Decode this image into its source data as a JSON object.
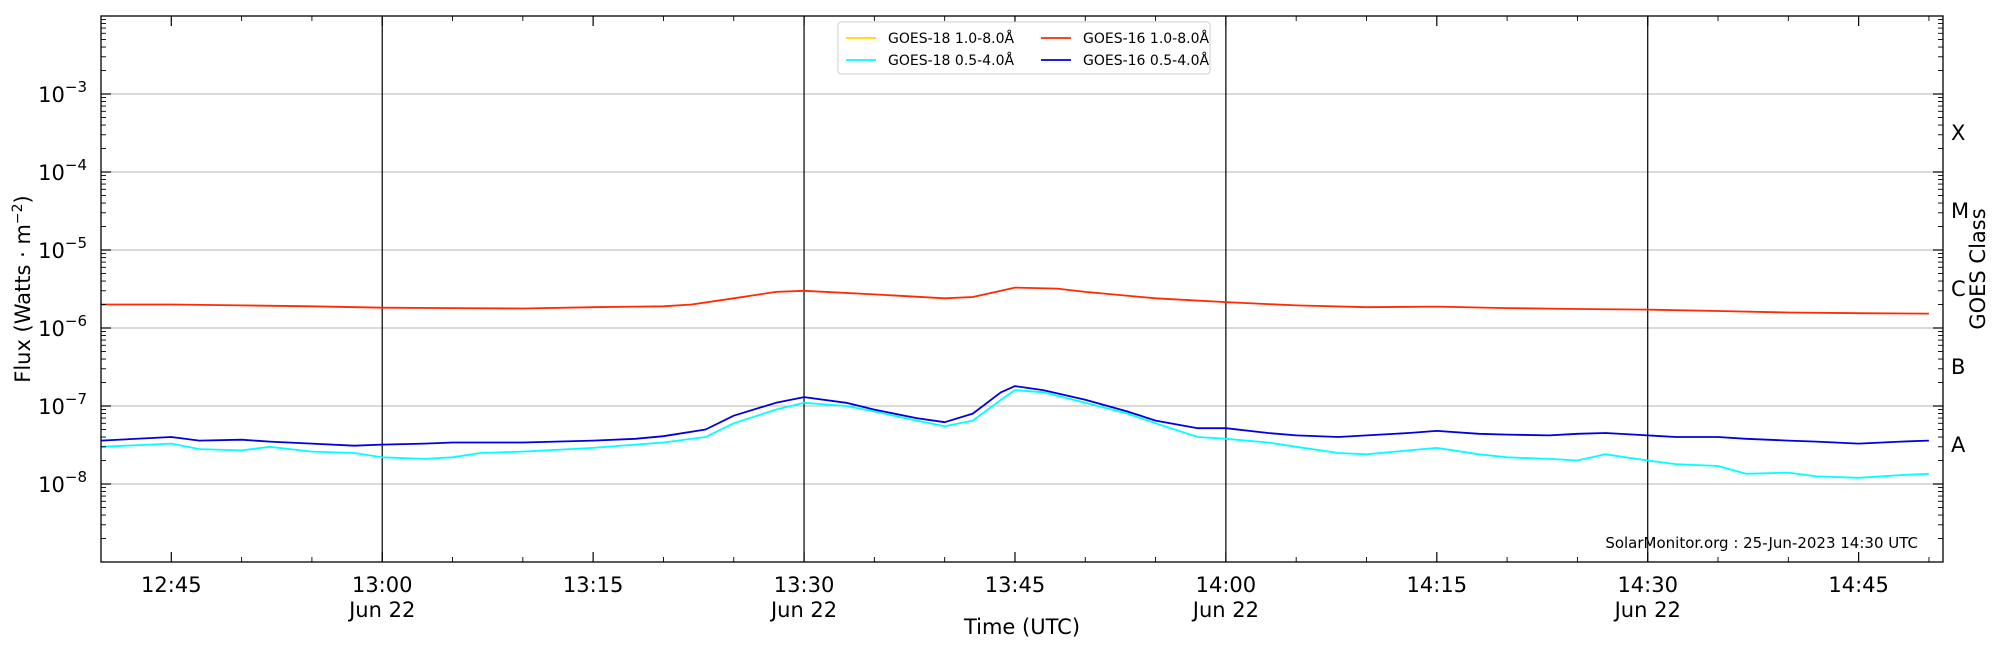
{
  "chart_data": {
    "type": "line",
    "xlabel": "Time (UTC)",
    "ylabel_base": "Flux (Watts · m",
    "ylabel_exp": "−2",
    "ylabel_close": ")",
    "y2label": "GOES Class",
    "yscale": "log",
    "ylim": [
      1e-09,
      0.01
    ],
    "xlim": [
      "12:40",
      "14:51"
    ],
    "xticks": [
      {
        "t": "12:45",
        "label": "12:45",
        "sub": ""
      },
      {
        "t": "13:00",
        "label": "13:00",
        "sub": "Jun 22"
      },
      {
        "t": "13:15",
        "label": "13:15",
        "sub": ""
      },
      {
        "t": "13:30",
        "label": "13:30",
        "sub": "Jun 22"
      },
      {
        "t": "13:45",
        "label": "13:45",
        "sub": ""
      },
      {
        "t": "14:00",
        "label": "14:00",
        "sub": "Jun 22"
      },
      {
        "t": "14:15",
        "label": "14:15",
        "sub": ""
      },
      {
        "t": "14:30",
        "label": "14:30",
        "sub": "Jun 22"
      },
      {
        "t": "14:45",
        "label": "14:45",
        "sub": ""
      }
    ],
    "vlines": [
      "13:00",
      "13:30",
      "14:00",
      "14:30"
    ],
    "yticks": [
      {
        "base": "10",
        "exp": "−8",
        "value": 1e-08
      },
      {
        "base": "10",
        "exp": "−7",
        "value": 1e-07
      },
      {
        "base": "10",
        "exp": "−6",
        "value": 1e-06
      },
      {
        "base": "10",
        "exp": "−5",
        "value": 1e-05
      },
      {
        "base": "10",
        "exp": "−4",
        "value": 0.0001
      },
      {
        "base": "10",
        "exp": "−3",
        "value": 0.001
      }
    ],
    "classes": [
      {
        "label": "A",
        "level": 1e-08
      },
      {
        "label": "B",
        "level": 1e-07
      },
      {
        "label": "C",
        "level": 1e-06
      },
      {
        "label": "M",
        "level": 1e-05
      },
      {
        "label": "X",
        "level": 0.0001
      }
    ],
    "credit": "SolarMonitor.org : 25-Jun-2023 14:30 UTC",
    "legend_position": "top-center",
    "grid": "horizontal",
    "series": [
      {
        "name": "GOES-18 1.0-8.0Å",
        "color": "#ffd700",
        "times": [],
        "values": []
      },
      {
        "name": "GOES-16 1.0-8.0Å",
        "color": "#ff2a00",
        "times": [
          "12:40",
          "12:45",
          "12:50",
          "12:55",
          "13:00",
          "13:05",
          "13:10",
          "13:15",
          "13:20",
          "13:22",
          "13:25",
          "13:28",
          "13:30",
          "13:35",
          "13:40",
          "13:42",
          "13:45",
          "13:48",
          "13:50",
          "13:55",
          "14:00",
          "14:05",
          "14:10",
          "14:15",
          "14:20",
          "14:25",
          "14:30",
          "14:35",
          "14:40",
          "14:45",
          "14:50"
        ],
        "values": [
          2e-06,
          2e-06,
          1.95e-06,
          1.9e-06,
          1.82e-06,
          1.8e-06,
          1.78e-06,
          1.85e-06,
          1.9e-06,
          2e-06,
          2.4e-06,
          2.9e-06,
          3e-06,
          2.7e-06,
          2.4e-06,
          2.5e-06,
          3.3e-06,
          3.2e-06,
          2.9e-06,
          2.4e-06,
          2.15e-06,
          1.95e-06,
          1.85e-06,
          1.88e-06,
          1.8e-06,
          1.75e-06,
          1.72e-06,
          1.65e-06,
          1.58e-06,
          1.55e-06,
          1.53e-06
        ]
      },
      {
        "name": "GOES-18 0.5-4.0Å",
        "color": "#00ffff",
        "times": [
          "12:40",
          "12:45",
          "12:47",
          "12:50",
          "12:52",
          "12:55",
          "12:58",
          "13:00",
          "13:03",
          "13:05",
          "13:07",
          "13:10",
          "13:15",
          "13:18",
          "13:20",
          "13:23",
          "13:25",
          "13:28",
          "13:30",
          "13:33",
          "13:35",
          "13:38",
          "13:40",
          "13:42",
          "13:44",
          "13:45",
          "13:47",
          "13:50",
          "13:53",
          "13:55",
          "13:58",
          "14:00",
          "14:03",
          "14:05",
          "14:08",
          "14:10",
          "14:13",
          "14:15",
          "14:18",
          "14:20",
          "14:23",
          "14:25",
          "14:27",
          "14:30",
          "14:32",
          "14:35",
          "14:37",
          "14:40",
          "14:42",
          "14:45",
          "14:48",
          "14:50"
        ],
        "values": [
          3e-08,
          3.3e-08,
          2.8e-08,
          2.7e-08,
          3e-08,
          2.6e-08,
          2.5e-08,
          2.2e-08,
          2.1e-08,
          2.2e-08,
          2.5e-08,
          2.6e-08,
          2.9e-08,
          3.2e-08,
          3.4e-08,
          4e-08,
          6e-08,
          9e-08,
          1.1e-07,
          1e-07,
          8.5e-08,
          6.5e-08,
          5.5e-08,
          6.5e-08,
          1.2e-07,
          1.6e-07,
          1.5e-07,
          1.1e-07,
          8e-08,
          6e-08,
          4e-08,
          3.8e-08,
          3.4e-08,
          3e-08,
          2.5e-08,
          2.4e-08,
          2.7e-08,
          2.9e-08,
          2.4e-08,
          2.2e-08,
          2.1e-08,
          2e-08,
          2.4e-08,
          2e-08,
          1.8e-08,
          1.7e-08,
          1.35e-08,
          1.4e-08,
          1.25e-08,
          1.2e-08,
          1.3e-08,
          1.35e-08
        ]
      },
      {
        "name": "GOES-16 0.5-4.0Å",
        "color": "#0000dd",
        "times": [
          "12:40",
          "12:45",
          "12:47",
          "12:50",
          "12:52",
          "12:55",
          "12:58",
          "13:00",
          "13:03",
          "13:05",
          "13:07",
          "13:10",
          "13:15",
          "13:18",
          "13:20",
          "13:23",
          "13:25",
          "13:28",
          "13:30",
          "13:33",
          "13:35",
          "13:38",
          "13:40",
          "13:42",
          "13:44",
          "13:45",
          "13:47",
          "13:50",
          "13:53",
          "13:55",
          "13:58",
          "14:00",
          "14:03",
          "14:05",
          "14:08",
          "14:10",
          "14:13",
          "14:15",
          "14:18",
          "14:20",
          "14:23",
          "14:25",
          "14:27",
          "14:30",
          "14:32",
          "14:35",
          "14:37",
          "14:40",
          "14:42",
          "14:45",
          "14:48",
          "14:50"
        ],
        "values": [
          3.6e-08,
          4e-08,
          3.6e-08,
          3.7e-08,
          3.5e-08,
          3.3e-08,
          3.1e-08,
          3.2e-08,
          3.3e-08,
          3.4e-08,
          3.4e-08,
          3.4e-08,
          3.6e-08,
          3.8e-08,
          4.1e-08,
          5e-08,
          7.5e-08,
          1.1e-07,
          1.3e-07,
          1.1e-07,
          9e-08,
          7e-08,
          6.2e-08,
          8e-08,
          1.5e-07,
          1.8e-07,
          1.6e-07,
          1.2e-07,
          8.5e-08,
          6.5e-08,
          5.2e-08,
          5.2e-08,
          4.5e-08,
          4.2e-08,
          4e-08,
          4.2e-08,
          4.5e-08,
          4.8e-08,
          4.4e-08,
          4.3e-08,
          4.2e-08,
          4.4e-08,
          4.5e-08,
          4.2e-08,
          4e-08,
          4e-08,
          3.8e-08,
          3.6e-08,
          3.5e-08,
          3.3e-08,
          3.5e-08,
          3.6e-08
        ]
      }
    ]
  }
}
